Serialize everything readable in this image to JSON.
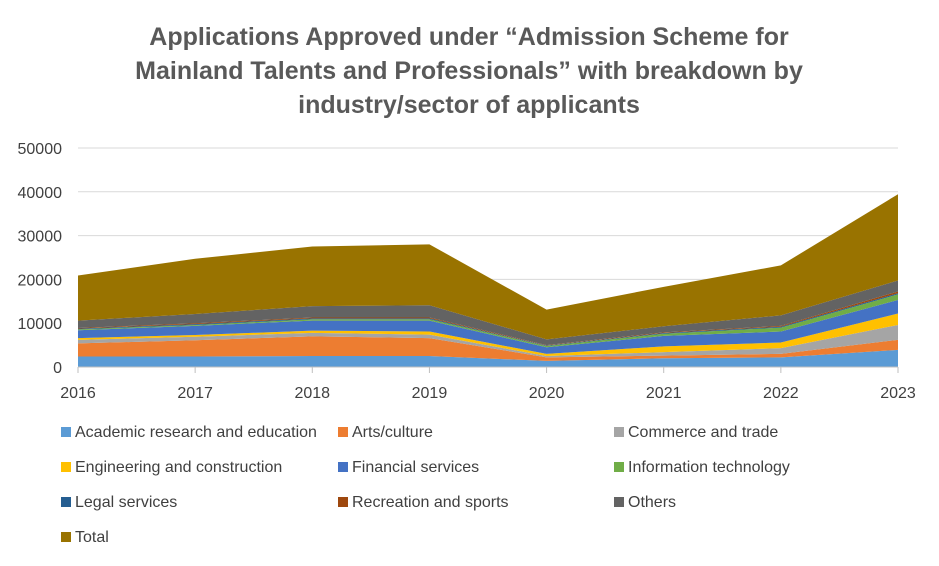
{
  "chart_data": {
    "type": "area",
    "title_lines": [
      "Applications Approved under “Admission Scheme for",
      "Mainland Talents and Professionals” with breakdown by",
      "industry/sector of applicants"
    ],
    "x": [
      "2016",
      "2017",
      "2018",
      "2019",
      "2020",
      "2021",
      "2022",
      "2023"
    ],
    "y_ticks": [
      "0",
      "10000",
      "20000",
      "30000",
      "40000",
      "50000"
    ],
    "ylim": [
      0,
      50000
    ],
    "grid": true,
    "legend_position": "bottom",
    "stacked": true,
    "series": [
      {
        "name": "Academic research and education",
        "color": "#5B9BD5",
        "values": [
          2400,
          2400,
          2500,
          2500,
          1400,
          2000,
          2200,
          3900
        ]
      },
      {
        "name": "Arts/culture",
        "color": "#ED7D31",
        "values": [
          3000,
          3700,
          4500,
          4100,
          800,
          600,
          800,
          2300
        ]
      },
      {
        "name": "Commerce and trade",
        "color": "#A5A5A5",
        "values": [
          800,
          800,
          800,
          800,
          300,
          800,
          1300,
          3400
        ]
      },
      {
        "name": "Engineering and construction",
        "color": "#FFC000",
        "values": [
          400,
          400,
          500,
          700,
          500,
          1300,
          1300,
          2600
        ]
      },
      {
        "name": "Financial services",
        "color": "#4472C4",
        "values": [
          1800,
          2100,
          2300,
          2500,
          1500,
          2400,
          2500,
          3100
        ]
      },
      {
        "name": "Information technology",
        "color": "#70AD47",
        "values": [
          200,
          200,
          300,
          300,
          300,
          500,
          900,
          1300
        ]
      },
      {
        "name": "Legal services",
        "color": "#255E91",
        "values": [
          150,
          200,
          200,
          200,
          100,
          150,
          200,
          250
        ]
      },
      {
        "name": "Recreation and sports",
        "color": "#9E480E",
        "values": [
          150,
          200,
          200,
          200,
          100,
          150,
          200,
          400
        ]
      },
      {
        "name": "Others",
        "color": "#636363",
        "values": [
          1700,
          2100,
          2600,
          2800,
          1300,
          1400,
          2400,
          2500
        ]
      },
      {
        "name": "Total",
        "color": "#997300",
        "values": [
          10300,
          12600,
          13600,
          13900,
          6800,
          9000,
          11400,
          19700
        ]
      }
    ]
  }
}
